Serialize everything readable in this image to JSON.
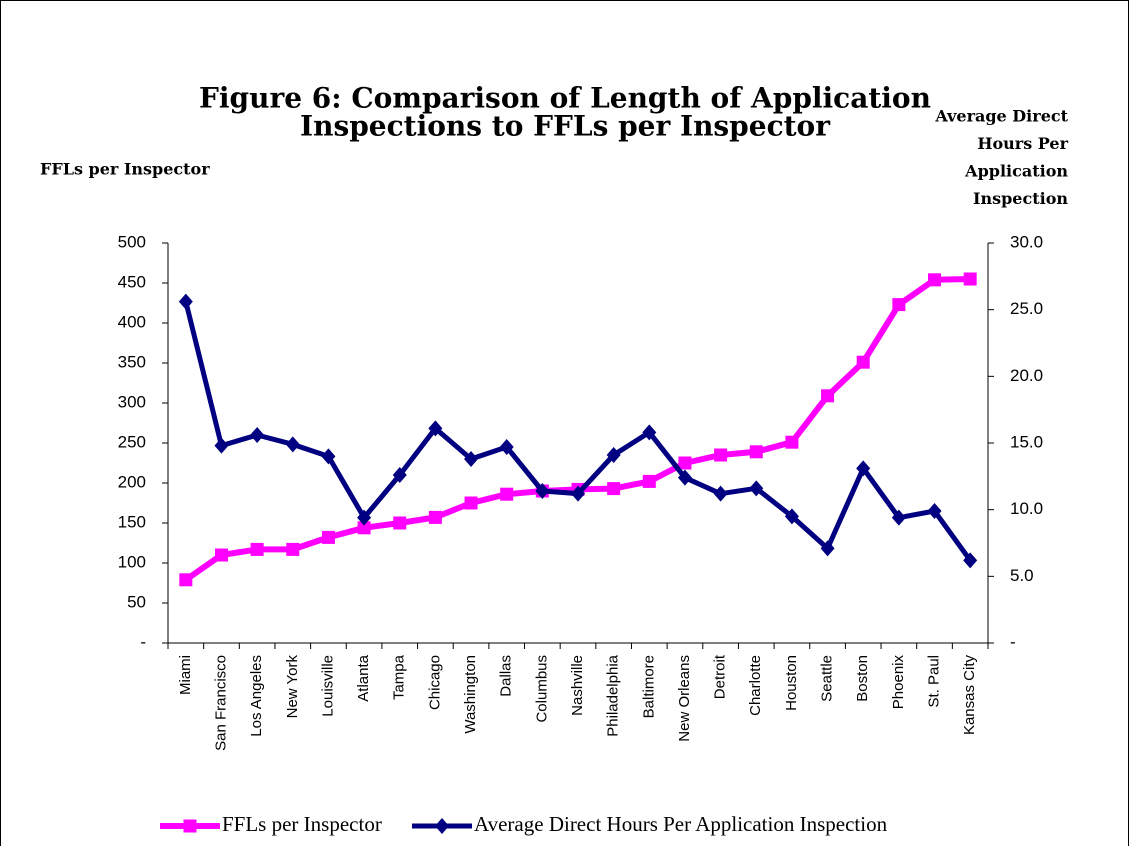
{
  "chart_data": {
    "type": "line",
    "title": [
      "Figure 6: Comparison of Length of Application",
      "Inspections to FFLs per Inspector"
    ],
    "y_label": "FFLs per Inspector",
    "y2_label": [
      "Average Direct",
      "Hours Per",
      "Application",
      "Inspection"
    ],
    "categories": [
      "Miami",
      "San Francisco",
      "Los Angeles",
      "New York",
      "Louisville",
      "Atlanta",
      "Tampa",
      "Chicago",
      "Washington",
      "Dallas",
      "Columbus",
      "Nashville",
      "Philadelphia",
      "Baltimore",
      "New Orleans",
      "Detroit",
      "Charlotte",
      "Houston",
      "Seattle",
      "Boston",
      "Phoenix",
      "St. Paul",
      "Kansas City"
    ],
    "series": [
      {
        "name": "FFLs per Inspector",
        "color": "#ff00ff",
        "marker": "square",
        "values": [
          79,
          110,
          117,
          117,
          132,
          144,
          150,
          157,
          175,
          186,
          190,
          192,
          193,
          202,
          225,
          235,
          239,
          251,
          309,
          351,
          423,
          454,
          455
        ]
      },
      {
        "name": "Average Direct Hours Per Application Inspection",
        "color": "#000080",
        "marker": "diamond",
        "axis": "y2",
        "values": [
          25.6,
          14.8,
          15.6,
          14.9,
          14.0,
          9.4,
          12.6,
          16.1,
          13.8,
          14.7,
          11.4,
          11.2,
          14.1,
          15.8,
          12.4,
          11.2,
          11.6,
          9.5,
          7.1,
          13.1,
          9.4,
          9.9,
          6.2
        ]
      }
    ],
    "ylim": [
      0,
      500
    ],
    "yticks": [
      {
        "value": 0,
        "label": "-"
      },
      50,
      100,
      150,
      200,
      250,
      300,
      350,
      400,
      450,
      500
    ],
    "y2lim": [
      0,
      30
    ],
    "y2ticks": [
      {
        "value": 0,
        "label": "-"
      },
      {
        "value": 5,
        "label": "5.0"
      },
      {
        "value": 10,
        "label": "10.0"
      },
      {
        "value": 15,
        "label": "15.0"
      },
      {
        "value": 20,
        "label": "20.0"
      },
      {
        "value": 25,
        "label": "25.0"
      },
      {
        "value": 30,
        "label": "30.0"
      }
    ],
    "legend": "bottom"
  }
}
